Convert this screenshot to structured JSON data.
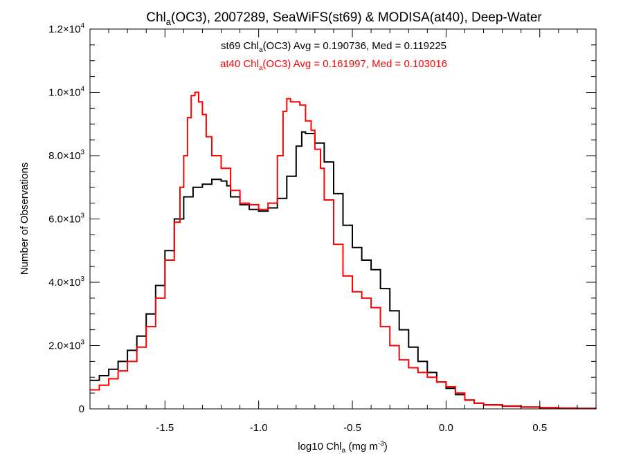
{
  "colors": {
    "background": "#ffffff",
    "axes": "#000000"
  },
  "chart_data": {
    "type": "line",
    "step": true,
    "title": {
      "prefix": "Chl",
      "sub": "a",
      "suffix": "(OC3), 2007289, SeaWiFS(st69) & MODISA(at40), Deep-Water"
    },
    "xlabel": {
      "prefix": "log10 Chl",
      "sub": "a",
      "mid": " (mg m",
      "sup": "-3",
      "suffix": ")"
    },
    "ylabel": "Number of Observations",
    "xlim": [
      -1.9,
      0.8
    ],
    "ylim": [
      0,
      12000
    ],
    "xticks": [
      {
        "value": -1.5,
        "label": "-1.5"
      },
      {
        "value": -1.0,
        "label": "-1.0"
      },
      {
        "value": -0.5,
        "label": "-0.5"
      },
      {
        "value": 0.0,
        "label": "0.0"
      },
      {
        "value": 0.5,
        "label": "0.5"
      }
    ],
    "yticks": [
      {
        "value": 0,
        "mant": "0",
        "exp": ""
      },
      {
        "value": 2000,
        "mant": "2.0×10",
        "exp": "3"
      },
      {
        "value": 4000,
        "mant": "4.0×10",
        "exp": "3"
      },
      {
        "value": 6000,
        "mant": "6.0×10",
        "exp": "3"
      },
      {
        "value": 8000,
        "mant": "8.0×10",
        "exp": "3"
      },
      {
        "value": 10000,
        "mant": "1.0×10",
        "exp": "4"
      },
      {
        "value": 12000,
        "mant": "1.2×10",
        "exp": "4"
      }
    ],
    "legend": [
      {
        "color": "#000000",
        "prefix": "st69 Chl",
        "sub": "a",
        "suffix": "(OC3) Avg = 0.190736, Med = 0.119225"
      },
      {
        "color": "#ff0000",
        "prefix": "at40 Chl",
        "sub": "a",
        "suffix": "(OC3) Avg = 0.161997, Med = 0.103016"
      }
    ],
    "series": [
      {
        "color": "#000000",
        "x": [
          -1.9,
          -1.85,
          -1.8,
          -1.75,
          -1.7,
          -1.65,
          -1.6,
          -1.55,
          -1.5,
          -1.45,
          -1.4,
          -1.35,
          -1.3,
          -1.25,
          -1.2,
          -1.17,
          -1.15,
          -1.1,
          -1.05,
          -1.0,
          -0.95,
          -0.9,
          -0.85,
          -0.8,
          -0.77,
          -0.75,
          -0.7,
          -0.65,
          -0.6,
          -0.55,
          -0.5,
          -0.45,
          -0.4,
          -0.35,
          -0.3,
          -0.25,
          -0.2,
          -0.15,
          -0.1,
          -0.05,
          0.0,
          0.05,
          0.1,
          0.15,
          0.2,
          0.3,
          0.4,
          0.5,
          0.6,
          0.7,
          0.8
        ],
        "y": [
          900,
          1050,
          1250,
          1500,
          1850,
          2300,
          3000,
          3900,
          5000,
          6000,
          6700,
          7000,
          7100,
          7250,
          7200,
          7050,
          6700,
          6450,
          6300,
          6250,
          6350,
          6650,
          7350,
          8300,
          8750,
          8700,
          8400,
          7800,
          6800,
          5800,
          5100,
          4700,
          4400,
          3800,
          3100,
          2500,
          1950,
          1500,
          1150,
          850,
          650,
          450,
          280,
          180,
          130,
          90,
          60,
          40,
          25,
          15,
          10
        ]
      },
      {
        "color": "#ff0000",
        "x": [
          -1.9,
          -1.85,
          -1.8,
          -1.75,
          -1.7,
          -1.65,
          -1.6,
          -1.55,
          -1.5,
          -1.45,
          -1.42,
          -1.4,
          -1.38,
          -1.36,
          -1.34,
          -1.32,
          -1.3,
          -1.28,
          -1.25,
          -1.2,
          -1.15,
          -1.1,
          -1.05,
          -1.0,
          -0.95,
          -0.9,
          -0.87,
          -0.85,
          -0.83,
          -0.8,
          -0.78,
          -0.75,
          -0.72,
          -0.7,
          -0.67,
          -0.65,
          -0.6,
          -0.55,
          -0.5,
          -0.45,
          -0.4,
          -0.35,
          -0.3,
          -0.25,
          -0.2,
          -0.15,
          -0.1,
          -0.05,
          0.0,
          0.05,
          0.1,
          0.15,
          0.2,
          0.3,
          0.4,
          0.5,
          0.6,
          0.7,
          0.8
        ],
        "y": [
          600,
          750,
          950,
          1200,
          1500,
          1950,
          2600,
          3500,
          4700,
          5900,
          7000,
          8000,
          9200,
          9900,
          10000,
          9700,
          9300,
          8600,
          8000,
          7600,
          6900,
          6500,
          6450,
          6300,
          6500,
          8000,
          9400,
          9800,
          9700,
          9700,
          9600,
          9100,
          8800,
          8200,
          7600,
          6600,
          5200,
          4200,
          3700,
          3500,
          3200,
          2600,
          2000,
          1550,
          1300,
          1150,
          1000,
          850,
          700,
          500,
          280,
          180,
          120,
          80,
          55,
          35,
          20,
          12,
          8
        ]
      }
    ]
  }
}
